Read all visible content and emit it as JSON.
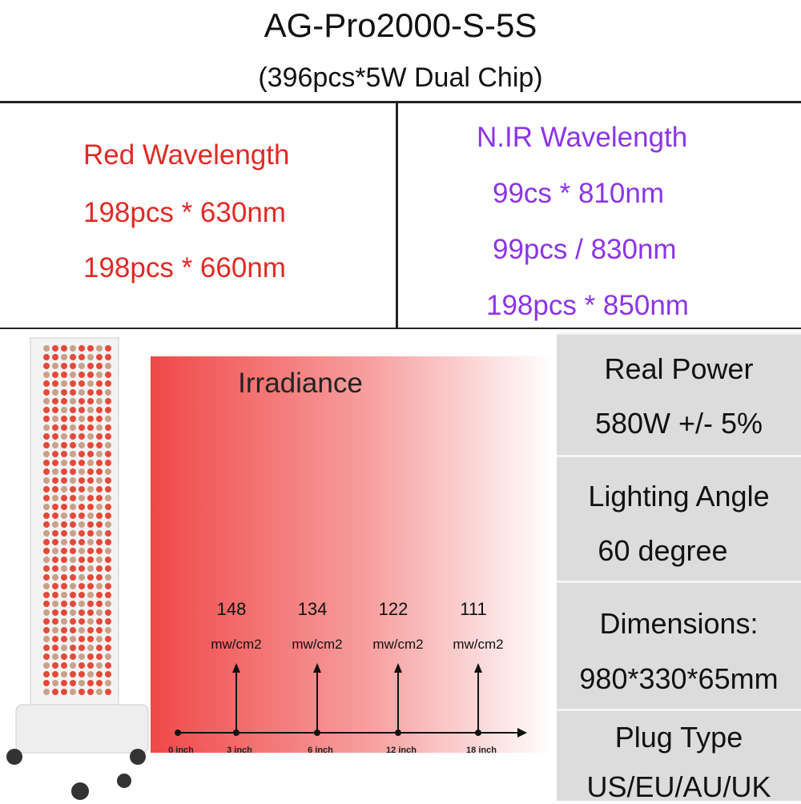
{
  "header": {
    "title": "AG-Pro2000-S-5S",
    "subtitle": "(396pcs*5W Dual Chip)"
  },
  "red": {
    "title": "Red Wavelength",
    "lines": [
      "198pcs * 630nm",
      "198pcs * 660nm"
    ]
  },
  "nir": {
    "title": "N.IR Wavelength",
    "lines": [
      "99cs * 810nm",
      "99pcs / 830nm",
      "198pcs * 850nm"
    ]
  },
  "irradiance": {
    "title": "Irradiance",
    "distances": [
      "0 inch",
      "3 inch",
      "6 inch",
      "12 inch",
      "18 inch"
    ],
    "readings": [
      {
        "value": 148,
        "unit": "mw/cm2"
      },
      {
        "value": 134,
        "unit": "mw/cm2"
      },
      {
        "value": 122,
        "unit": "mw/cm2"
      },
      {
        "value": 111,
        "unit": "mw/cm2"
      }
    ]
  },
  "specs": [
    {
      "label": "Real Power",
      "value": "580W +/- 5%"
    },
    {
      "label": "Lighting Angle",
      "value": "60 degree"
    },
    {
      "label": "Dimensions:",
      "value": "980*330*65mm"
    },
    {
      "label": "Plug Type",
      "value": "US/EU/AU/UK"
    }
  ]
}
